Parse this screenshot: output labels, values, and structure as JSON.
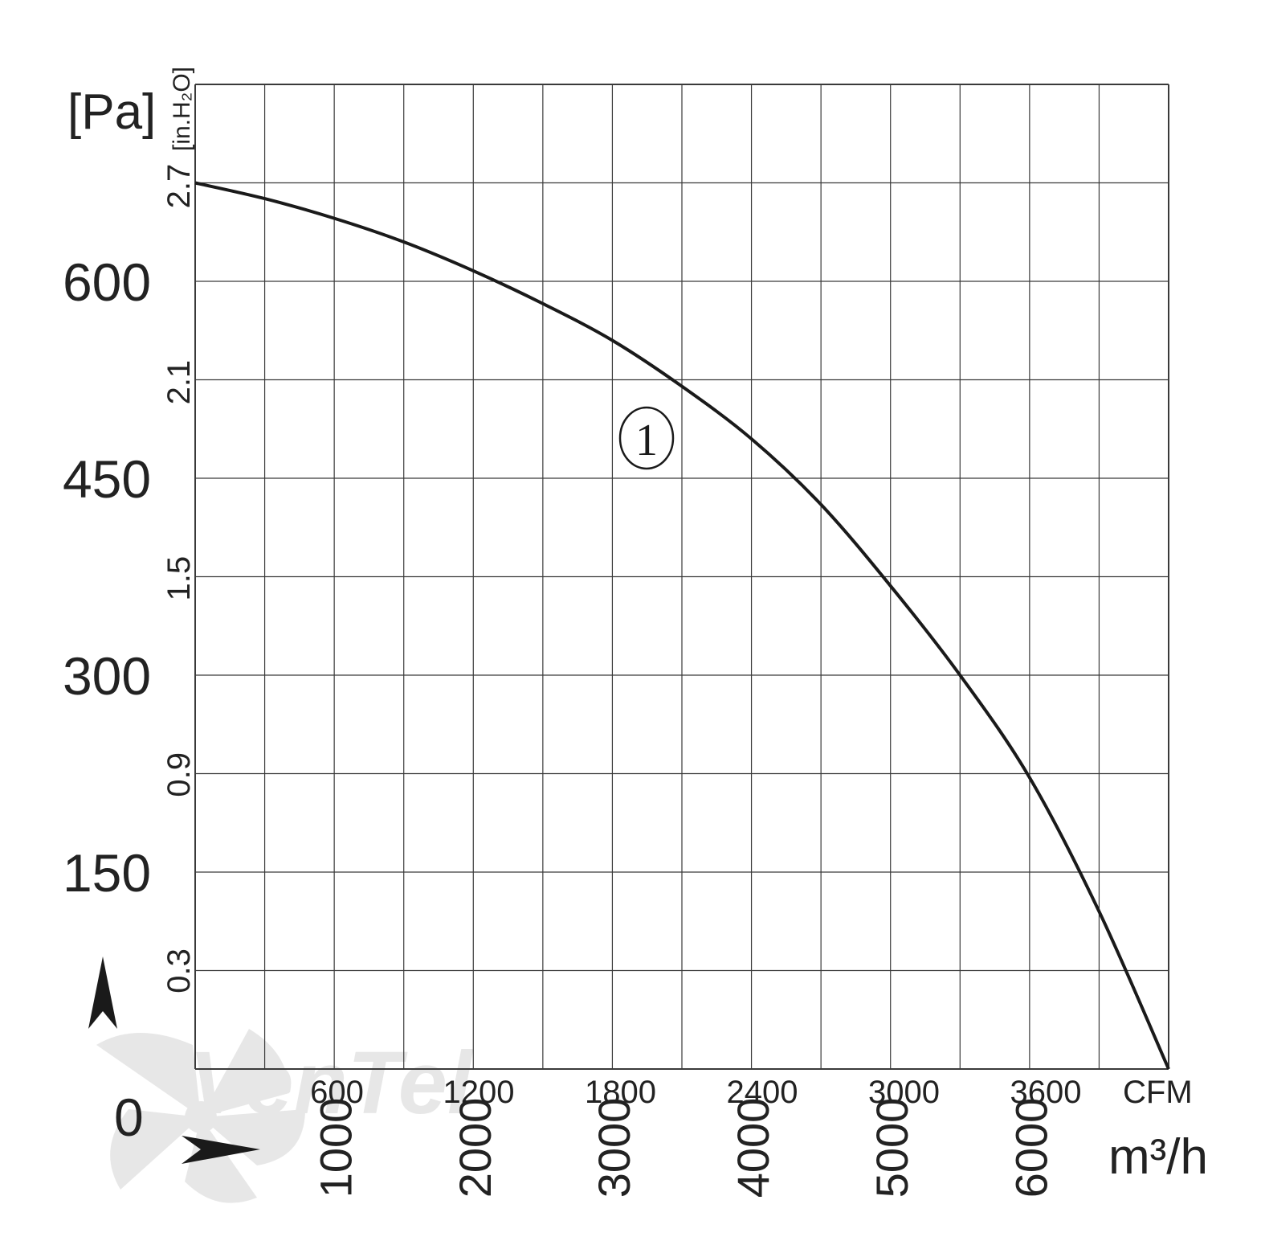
{
  "chart_data": {
    "type": "line",
    "title": "",
    "ylabel": "[Pa]",
    "ylabel_secondary": "[in.H₂O]",
    "y_ticks": [
      "150",
      "300",
      "450",
      "600"
    ],
    "y_zero_label": "0",
    "ylim": [
      0,
      750
    ],
    "y2_ticks": [
      "0.3",
      "0.9",
      "1.5",
      "2.1",
      "2.7"
    ],
    "xlabel_primary": "m³/h",
    "x_ticks": [
      "1000",
      "2000",
      "3000",
      "4000",
      "5000",
      "6000"
    ],
    "xlim": [
      0,
      7000
    ],
    "xlabel_secondary": "CFM",
    "x2_ticks": [
      "600",
      "1200",
      "1800",
      "2400",
      "3000",
      "3600"
    ],
    "grid": true,
    "series": [
      {
        "name": "",
        "marker_label": "①",
        "x": [
          0,
          500,
          1000,
          1500,
          2000,
          2500,
          3000,
          3500,
          4000,
          4500,
          5000,
          5500,
          6000,
          6500,
          7000
        ],
        "y": [
          675,
          663,
          648,
          630,
          608,
          583,
          555,
          520,
          480,
          430,
          368,
          300,
          222,
          120,
          0
        ]
      }
    ]
  },
  "brand": {
    "watermark": "VenTel",
    "colors": {
      "line": "#1a1a1a",
      "grid": "#3a3a3a",
      "watermark": "#c8c8c8",
      "accent": "#9fc3e6"
    }
  }
}
